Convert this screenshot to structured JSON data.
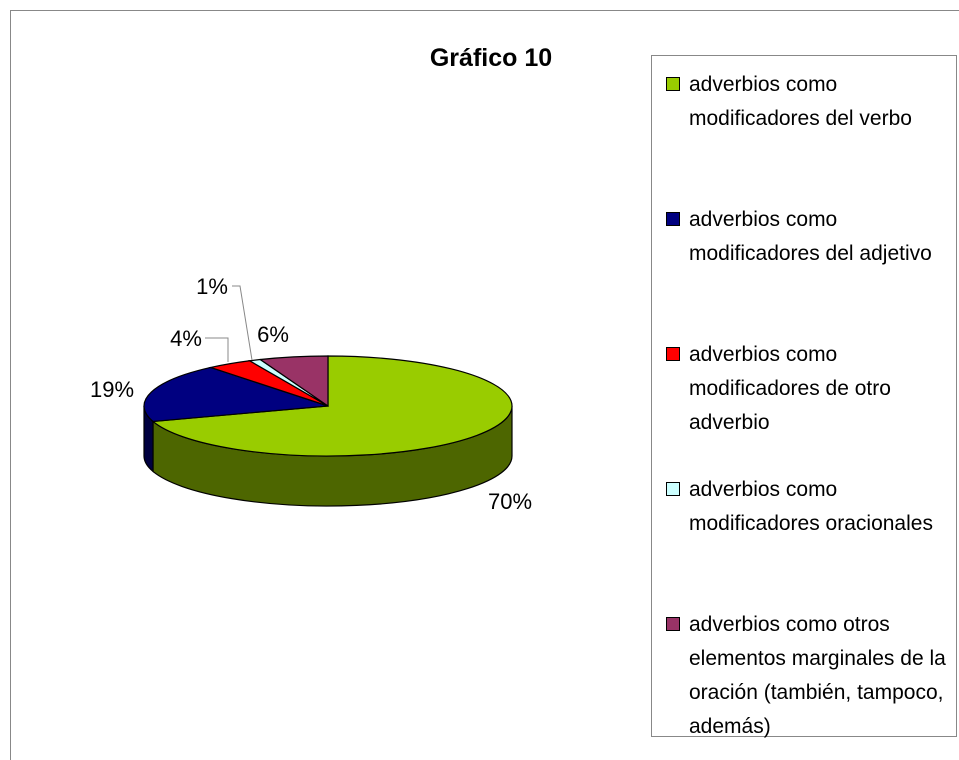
{
  "chart_data": {
    "type": "pie",
    "title": "Gráfico 10",
    "categories": [
      "adverbios como modificadores del verbo",
      "adverbios como modificadores del adjetivo",
      "adverbios como modificadores de otro adverbio",
      "adverbios como modificadores oracionales",
      "adverbios como otros elementos marginales de la oración (también, tampoco, además)"
    ],
    "values": [
      70,
      19,
      4,
      1,
      6
    ],
    "value_labels": [
      "70%",
      "19%",
      "4%",
      "1%",
      "6%"
    ],
    "colors": [
      "#99cc00",
      "#000080",
      "#ff0000",
      "#ccffff",
      "#993366"
    ],
    "legend": "right"
  }
}
